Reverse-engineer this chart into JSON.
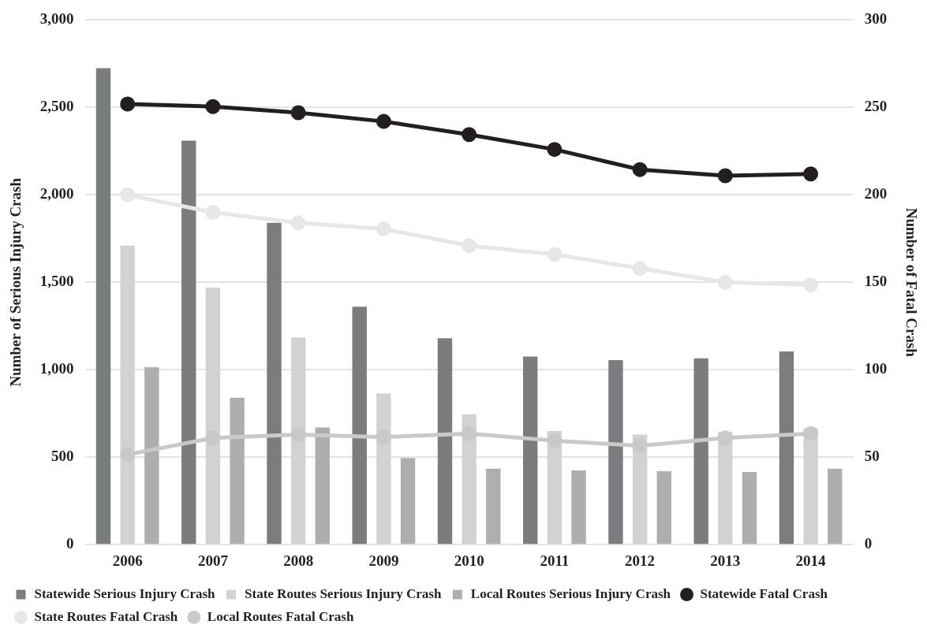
{
  "chart_data": {
    "type": "bar",
    "categories": [
      "2006",
      "2007",
      "2008",
      "2009",
      "2010",
      "2011",
      "2012",
      "2013",
      "2014"
    ],
    "ylabel": "Number of Serious Injury Crash",
    "y2label": "Number of Fatal Crash",
    "ylim": [
      0,
      3000
    ],
    "yticks": [
      {
        "value": 0,
        "label": "0"
      },
      {
        "value": 500,
        "label": "500"
      },
      {
        "value": 1000,
        "label": "1,000"
      },
      {
        "value": 1500,
        "label": "1,500"
      },
      {
        "value": 2000,
        "label": "2,000"
      },
      {
        "value": 2500,
        "label": "2,500"
      },
      {
        "value": 3000,
        "label": "3,000"
      }
    ],
    "y2lim": [
      0,
      300
    ],
    "y2ticks": [
      0,
      50,
      100,
      150,
      200,
      250,
      300
    ],
    "grid": "y",
    "legend": "bottom",
    "marker": "circle",
    "series": [
      {
        "name": "Statewide Serious Injury Crash",
        "type": "bar",
        "color": "#7b7c7e",
        "values": [
          2725,
          2310,
          1840,
          1360,
          1180,
          1075,
          1055,
          1065,
          1105
        ]
      },
      {
        "name": "State Routes Serious Injury Crash",
        "type": "bar",
        "color": "#d1d2d4",
        "values": [
          1710,
          1470,
          1185,
          865,
          745,
          650,
          630,
          645,
          665
        ]
      },
      {
        "name": "Local Routes Serious Injury Crash",
        "type": "bar",
        "color": "#adaeb0",
        "values": [
          1015,
          840,
          670,
          495,
          435,
          425,
          420,
          415,
          435
        ]
      },
      {
        "name": "Statewide Fatal Crash",
        "type": "line",
        "axis": "y2",
        "color": "#231f20",
        "values": [
          252,
          250.5,
          247,
          242,
          234.5,
          226,
          214.5,
          211,
          212
        ]
      },
      {
        "name": "State Routes Fatal Crash",
        "type": "line",
        "axis": "y2",
        "color": "#e6e7e8",
        "values": [
          200,
          190,
          184,
          180.5,
          171,
          166,
          158,
          150,
          148.5
        ]
      },
      {
        "name": "Local Routes Fatal Crash",
        "type": "line",
        "axis": "y2",
        "color": "#c8c9cb",
        "values": [
          51.5,
          61,
          63,
          61.5,
          63.5,
          59.5,
          56.5,
          61,
          63.5
        ]
      }
    ]
  }
}
